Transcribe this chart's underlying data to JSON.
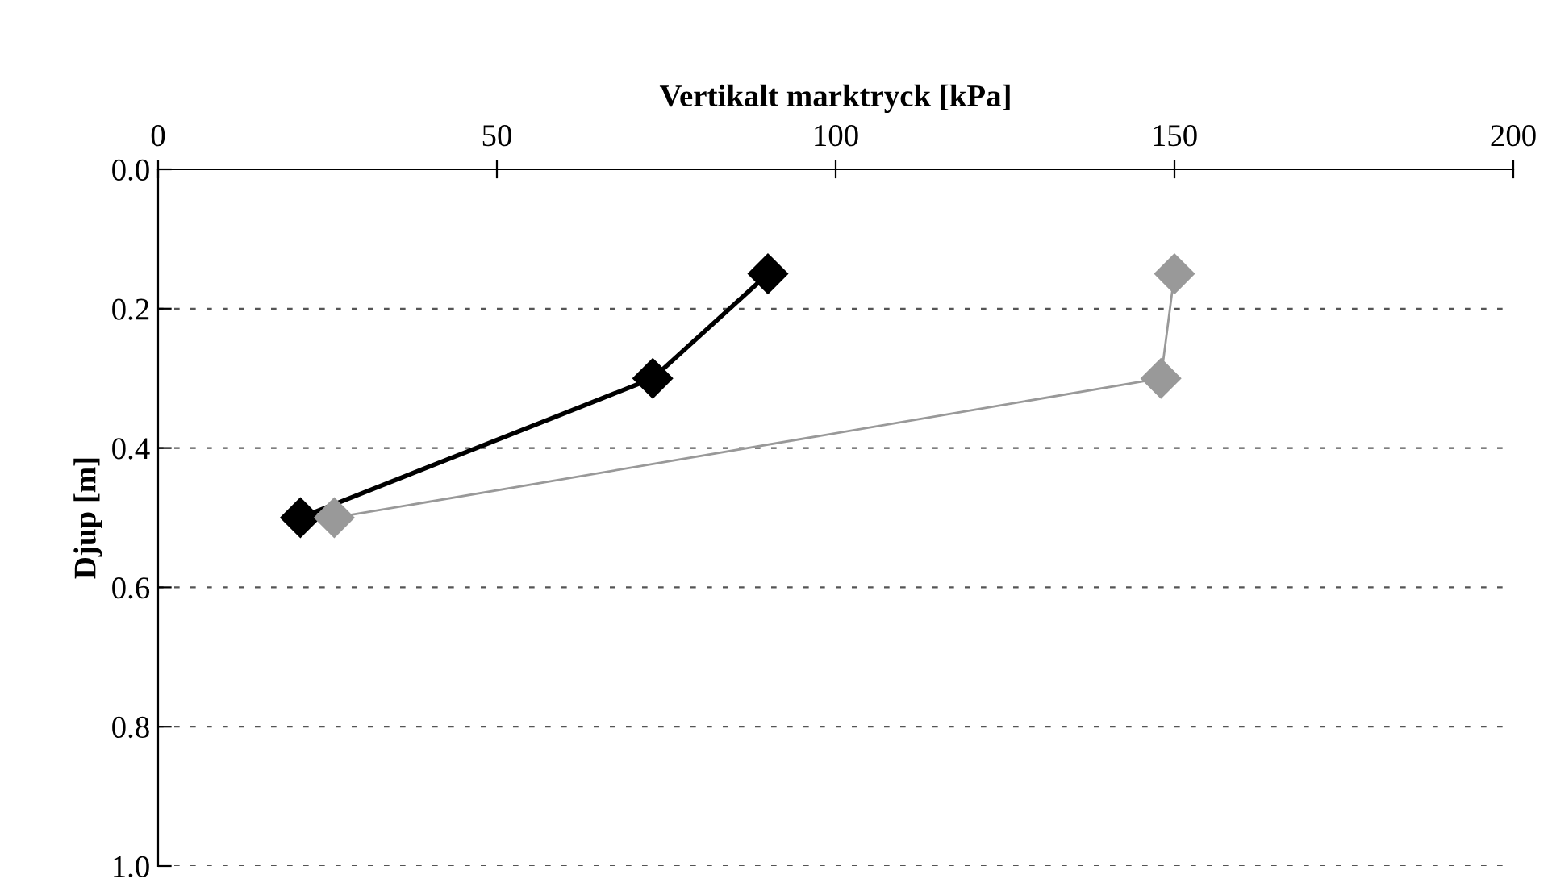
{
  "chart_data": {
    "type": "line",
    "xlabel": "Vertikalt marktryck [kPa]",
    "ylabel": "Djup [m]",
    "series": [
      {
        "color": "#000000",
        "x": [
          90,
          73,
          21
        ],
        "values": [
          0.15,
          0.3,
          0.5
        ]
      },
      {
        "color": "#999999",
        "x": [
          150,
          148,
          26
        ],
        "values": [
          0.15,
          0.3,
          0.5
        ]
      }
    ],
    "xlim": [
      0,
      200
    ],
    "xticks": [
      0,
      50,
      100,
      150,
      200
    ],
    "ylim": [
      1.0,
      0.0
    ],
    "yticks": [
      {
        "value": 0.0,
        "label": "0.0"
      },
      {
        "value": 0.2,
        "label": "0.2"
      },
      {
        "value": 0.4,
        "label": "0.4"
      },
      {
        "value": 0.6,
        "label": "0.6"
      },
      {
        "value": 0.8,
        "label": "0.8"
      },
      {
        "value": 1.0,
        "label": "1.0"
      }
    ],
    "grid": "y",
    "marker": "diamond",
    "line_style": "solid",
    "legend": false
  }
}
